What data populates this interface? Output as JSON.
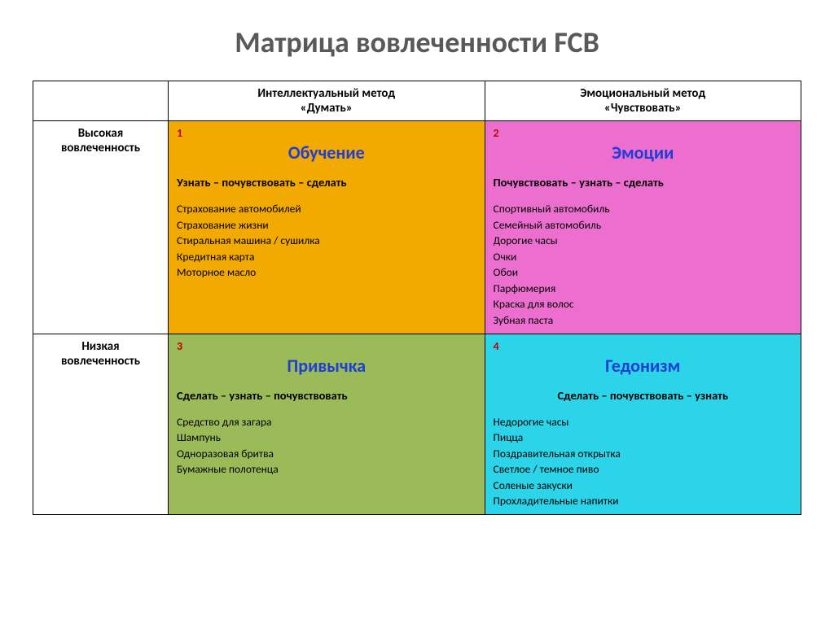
{
  "title": "Матрица вовлеченности FCB",
  "columns": [
    {
      "line1": "Интеллектуальный метод",
      "line2": "«Думать»"
    },
    {
      "line1": "Эмоциональный метод",
      "line2": "«Чувствовать»"
    }
  ],
  "rows": [
    {
      "line1": "Высокая",
      "line2": "вовлеченность"
    },
    {
      "line1": "Низкая",
      "line2": "вовлеченность"
    }
  ],
  "quadrants": [
    {
      "num": "1",
      "title": "Обучение",
      "title_color": "#1f3fd4",
      "bg": "#f2a900",
      "sequence": "Узнать – почувствовать – сделать",
      "seq_align": "left",
      "items": [
        "Страхование автомобилей",
        "Страхование жизни",
        "Стиральная машина / сушилка",
        "Кредитная карта",
        "Моторное масло"
      ]
    },
    {
      "num": "2",
      "title": "Эмоции",
      "title_color": "#1f3fd4",
      "bg": "#ec6fd0",
      "sequence": "Почувствовать – узнать – сделать",
      "seq_align": "left",
      "items": [
        "Спортивный автомобиль",
        "Семейный автомобиль",
        "Дорогие часы",
        "Очки",
        "Обои",
        "Парфюмерия",
        "Краска для волос",
        "Зубная паста"
      ]
    },
    {
      "num": "3",
      "title": "Привычка",
      "title_color": "#1f3fd4",
      "bg": "#9bbb59",
      "sequence": "Сделать – узнать – почувствовать",
      "seq_align": "left",
      "items": [
        "Средство для загара",
        "Шампунь",
        "Одноразовая бритва",
        "Бумажные полотенца"
      ]
    },
    {
      "num": "4",
      "title": "Гедонизм",
      "title_color": "#1f3fd4",
      "bg": "#2bd4e8",
      "sequence": "Сделать – почувствовать – узнать",
      "seq_align": "center",
      "items": [
        "Недорогие часы",
        "Пицца",
        "Поздравительная открытка",
        "Светлое /   темное пиво",
        "Соленые закуски",
        "Прохладительные напитки"
      ]
    }
  ],
  "style": {
    "title_fontsize": 36,
    "title_color": "#595959",
    "quad_title_fontsize": 22,
    "border_color": "#000000",
    "num_color": "#c00000"
  }
}
